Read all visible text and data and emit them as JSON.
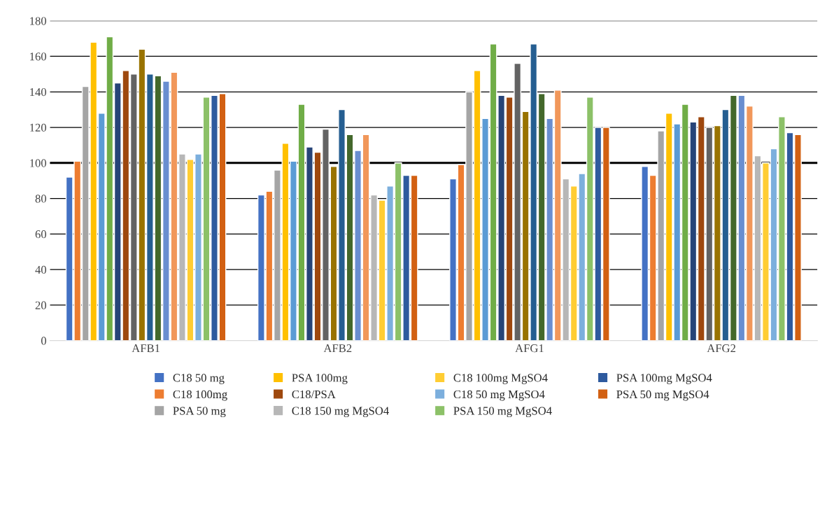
{
  "chart_data": {
    "type": "bar",
    "categories": [
      "AFB1",
      "AFB2",
      "AFG1",
      "AFG2"
    ],
    "series": [
      {
        "name": "C18 50 mg",
        "color": "#4472c4",
        "values": [
          92,
          82,
          91,
          98
        ]
      },
      {
        "name": "C18 100mg",
        "color": "#ed7d31",
        "values": [
          101,
          84,
          99,
          93
        ]
      },
      {
        "name": "PSA 50 mg",
        "color": "#a5a5a5",
        "values": [
          143,
          96,
          140,
          118
        ]
      },
      {
        "name": "PSA 100mg",
        "color": "#ffc000",
        "values": [
          168,
          111,
          152,
          128
        ]
      },
      {
        "name": null,
        "color": "#5b9bd5",
        "values": [
          128,
          101,
          125,
          122
        ]
      },
      {
        "name": null,
        "color": "#70ad47",
        "values": [
          171,
          133,
          167,
          133
        ]
      },
      {
        "name": null,
        "color": "#264478",
        "values": [
          145,
          109,
          138,
          123
        ]
      },
      {
        "name": "C18/PSA",
        "color": "#9e480e",
        "values": [
          152,
          106,
          137,
          126
        ]
      },
      {
        "name": null,
        "color": "#636363",
        "values": [
          150,
          119,
          156,
          120
        ]
      },
      {
        "name": null,
        "color": "#997300",
        "values": [
          164,
          98,
          129,
          121
        ]
      },
      {
        "name": null,
        "color": "#255e91",
        "values": [
          150,
          130,
          167,
          130
        ]
      },
      {
        "name": null,
        "color": "#43682b",
        "values": [
          149,
          116,
          139,
          138
        ]
      },
      {
        "name": null,
        "color": "#698ed0",
        "values": [
          146,
          107,
          125,
          138
        ]
      },
      {
        "name": null,
        "color": "#f1975a",
        "values": [
          151,
          116,
          141,
          132
        ]
      },
      {
        "name": "C18 150 mg MgSO4",
        "color": "#b7b7b7",
        "values": [
          105,
          82,
          91,
          104
        ]
      },
      {
        "name": "C18 100mg MgSO4",
        "color": "#ffcd33",
        "values": [
          102,
          79,
          87,
          100
        ]
      },
      {
        "name": "C18 50 mg MgSO4",
        "color": "#7cafdd",
        "values": [
          105,
          87,
          94,
          108
        ]
      },
      {
        "name": "PSA 150 mg MgSO4",
        "color": "#8cc168",
        "values": [
          137,
          100,
          137,
          126
        ]
      },
      {
        "name": "PSA 100mg MgSO4",
        "color": "#2e5a9e",
        "values": [
          138,
          93,
          120,
          117
        ]
      },
      {
        "name": "PSA 50 mg MgSO4",
        "color": "#d26012",
        "values": [
          139,
          93,
          120,
          116
        ]
      }
    ],
    "ylim": [
      0,
      180
    ],
    "yticks": [
      0,
      20,
      40,
      60,
      80,
      100,
      120,
      140,
      160,
      180
    ],
    "grid": "y",
    "legend": "bottom",
    "ref_lines": [
      {
        "axis": "y",
        "value": 100,
        "color": "#000000"
      }
    ]
  }
}
